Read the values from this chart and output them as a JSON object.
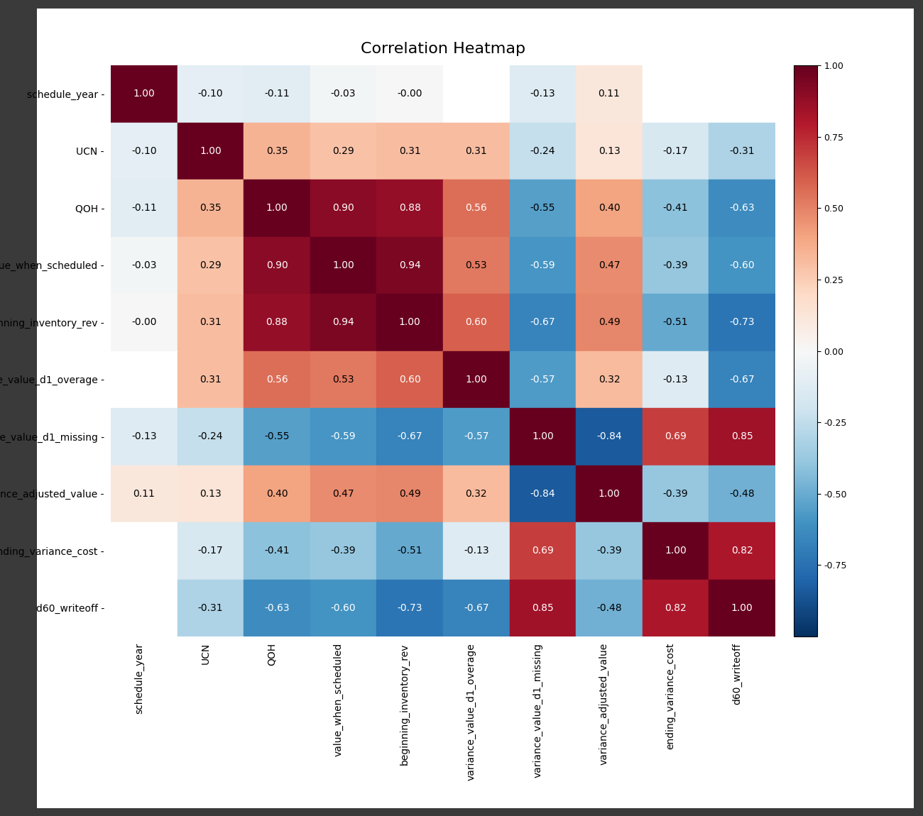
{
  "labels": [
    "schedule_year",
    "UCN",
    "QOH",
    "value_when_scheduled",
    "beginning_inventory_rev",
    "variance_value_d1_overage",
    "variance_value_d1_missing",
    "variance_adjusted_value",
    "ending_variance_cost",
    "d60_writeoff"
  ],
  "corr_matrix": [
    [
      1.0,
      -0.1,
      -0.11,
      -0.03,
      -0.0,
      null,
      -0.13,
      0.11,
      null,
      null
    ],
    [
      -0.1,
      1.0,
      0.35,
      0.29,
      0.31,
      0.31,
      -0.24,
      0.13,
      -0.17,
      -0.31
    ],
    [
      -0.11,
      0.35,
      1.0,
      0.9,
      0.88,
      0.56,
      -0.55,
      0.4,
      -0.41,
      -0.63
    ],
    [
      -0.03,
      0.29,
      0.9,
      1.0,
      0.94,
      0.53,
      -0.59,
      0.47,
      -0.39,
      -0.6
    ],
    [
      -0.0,
      0.31,
      0.88,
      0.94,
      1.0,
      0.6,
      -0.67,
      0.49,
      -0.51,
      -0.73
    ],
    [
      null,
      0.31,
      0.56,
      0.53,
      0.6,
      1.0,
      -0.57,
      0.32,
      -0.13,
      -0.67
    ],
    [
      -0.13,
      -0.24,
      -0.55,
      -0.59,
      -0.67,
      -0.57,
      1.0,
      -0.84,
      0.69,
      0.85
    ],
    [
      0.11,
      0.13,
      0.4,
      0.47,
      0.49,
      0.32,
      -0.84,
      1.0,
      -0.39,
      -0.48
    ],
    [
      null,
      -0.17,
      -0.41,
      -0.39,
      -0.51,
      -0.13,
      0.69,
      -0.39,
      1.0,
      0.82
    ],
    [
      null,
      -0.31,
      -0.63,
      -0.6,
      -0.73,
      -0.67,
      0.85,
      -0.48,
      0.82,
      1.0
    ]
  ],
  "title": "Correlation Heatmap",
  "vmin": -1.0,
  "vmax": 1.0,
  "cmap": "RdBu_r",
  "figsize": [
    13.0,
    11.5
  ],
  "dpi": 100,
  "title_fontsize": 16,
  "tick_fontsize": 10,
  "annot_fontsize": 10,
  "colorbar_ticks": [
    1.0,
    0.75,
    0.5,
    0.25,
    0.0,
    -0.25,
    -0.5,
    -0.75
  ],
  "colorbar_ticklabels": [
    "1.00",
    "0.75",
    "0.50",
    "0.25",
    "0.00",
    "-0.25",
    "-0.50",
    "-0.75"
  ],
  "nan_color": "#f0f0f0",
  "white_color": "#ffffff",
  "outer_bg": "#3a3a3a"
}
